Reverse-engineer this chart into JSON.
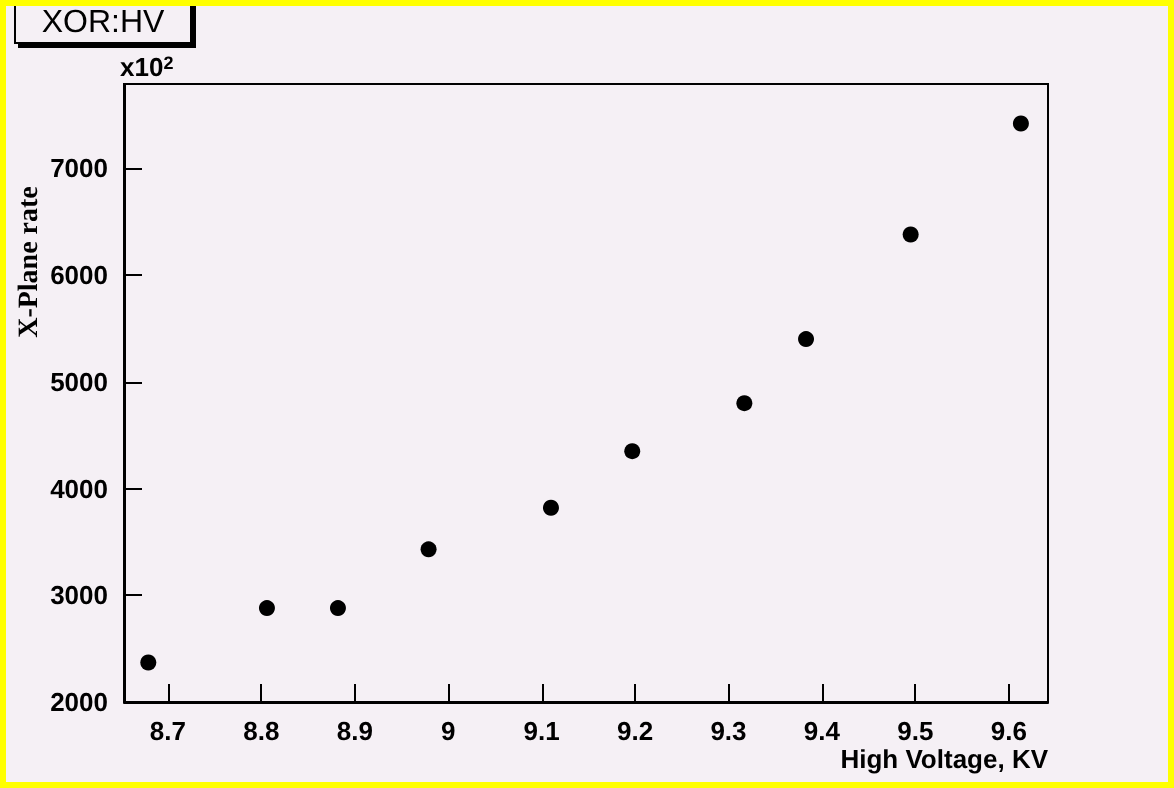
{
  "chart_data": {
    "type": "scatter",
    "title": "XOR:HV",
    "xlabel": "High Voltage, KV",
    "ylabel": "X-Plane rate",
    "annotations": [
      "x10$^{2}$"
    ],
    "x": [
      8.679,
      8.806,
      8.882,
      8.979,
      9.11,
      9.197,
      9.317,
      9.383,
      9.495,
      9.613
    ],
    "series": [
      {
        "color": "#000000",
        "values": [
          2370,
          2880,
          2880,
          3430,
          3820,
          4350,
          4800,
          5400,
          6380,
          7420
        ]
      }
    ],
    "xlim": [
      8.653,
      9.642
    ],
    "ylim": [
      2000,
      7790
    ],
    "xticks": [
      8.7,
      8.8,
      8.9,
      9,
      9.1,
      9.2,
      9.3,
      9.4,
      9.5,
      9.6
    ],
    "yticks": [
      2000,
      3000,
      4000,
      5000,
      6000,
      7000
    ],
    "grid": false,
    "marker": "circle"
  }
}
